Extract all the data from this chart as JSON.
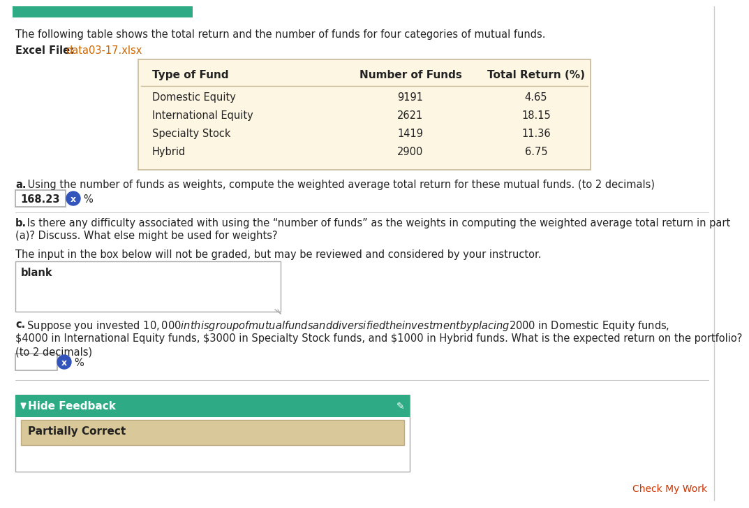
{
  "bg_color": "#ffffff",
  "intro_text": "The following table shows the total return and the number of funds for four categories of mutual funds.",
  "excel_label": "Excel File:",
  "excel_link": "data03-17.xlsx",
  "excel_link_color": "#cc6600",
  "table_headers": [
    "Type of Fund",
    "Number of Funds",
    "Total Return (%)"
  ],
  "table_rows": [
    [
      "Domestic Equity",
      "9191",
      "4.65"
    ],
    [
      "International Equity",
      "2621",
      "18.15"
    ],
    [
      "Specialty Stock",
      "1419",
      "11.36"
    ],
    [
      "Hybrid",
      "2900",
      "6.75"
    ]
  ],
  "table_bg": "#fdf6e3",
  "table_border": "#c8b89a",
  "part_a_bold": "a.",
  "part_a_text": " Using the number of funds as weights, compute the weighted average total return for these mutual funds. (to 2 decimals)",
  "answer_a": "168.23",
  "answer_a_unit": "%",
  "part_b_bold": "b.",
  "part_b_text": " Is there any difficulty associated with using the “number of funds” as the weights in computing the weighted average total return in part",
  "part_b_text2": "(a)? Discuss. What else might be used for weights?",
  "input_label": "The input in the box below will not be graded, but may be reviewed and considered by your instructor.",
  "blank_text": "blank",
  "part_c_bold": "c.",
  "part_c_line1": " Suppose you invested $10,000 in this group of mutual funds and diversified the investment by placing $2000 in Domestic Equity funds,",
  "part_c_line2": "$4000 in International Equity funds, $3000 in Specialty Stock funds, and $1000 in Hybrid funds. What is the expected return on the portfolio?",
  "part_c_line3": "(to 2 decimals)",
  "answer_c_unit": "%",
  "feedback_header": "Hide Feedback",
  "feedback_text": "Partially Correct",
  "feedback_header_bg": "#2eab84",
  "feedback_body_bg": "#d9c99a",
  "check_my_work": "Check My Work",
  "check_my_work_color": "#cc3300",
  "top_bar_color": "#2eab84",
  "right_border_color": "#cccccc",
  "sep_line_color": "#cccccc"
}
